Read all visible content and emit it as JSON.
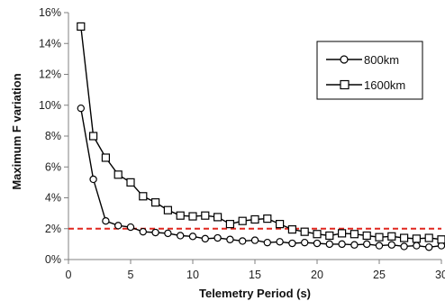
{
  "chart_data": {
    "type": "line",
    "title": "",
    "xlabel": "Telemetry Period (s)",
    "ylabel": "Maximum F variation",
    "xlim": [
      0,
      30
    ],
    "ylim": [
      0,
      16
    ],
    "x_ticks": [
      0,
      5,
      10,
      15,
      20,
      25,
      30
    ],
    "y_ticks": [
      0,
      2,
      4,
      6,
      8,
      10,
      12,
      14,
      16
    ],
    "y_tick_suffix": "%",
    "grid": false,
    "legend_position": "top-right",
    "reference_line": {
      "y": 2,
      "style": "dashed",
      "color": "#e0261e"
    },
    "series": [
      {
        "name": "800km",
        "marker": "circle",
        "color": "#000000",
        "x": [
          1,
          2,
          3,
          4,
          5,
          6,
          7,
          8,
          9,
          10,
          11,
          12,
          13,
          14,
          15,
          16,
          17,
          18,
          19,
          20,
          21,
          22,
          23,
          24,
          25,
          26,
          27,
          28,
          29,
          30
        ],
        "y": [
          9.8,
          5.2,
          2.5,
          2.2,
          2.1,
          1.8,
          1.75,
          1.7,
          1.55,
          1.5,
          1.35,
          1.4,
          1.3,
          1.2,
          1.25,
          1.1,
          1.15,
          1.05,
          1.1,
          1.05,
          1.0,
          1.0,
          0.95,
          1.0,
          0.9,
          0.95,
          0.85,
          0.9,
          0.8,
          0.9
        ]
      },
      {
        "name": "1600km",
        "marker": "square",
        "color": "#000000",
        "x": [
          1,
          2,
          3,
          4,
          5,
          6,
          7,
          8,
          9,
          10,
          11,
          12,
          13,
          14,
          15,
          16,
          17,
          18,
          19,
          20,
          21,
          22,
          23,
          24,
          25,
          26,
          27,
          28,
          29,
          30
        ],
        "y": [
          15.1,
          8.0,
          6.6,
          5.5,
          5.0,
          4.1,
          3.7,
          3.2,
          2.85,
          2.8,
          2.85,
          2.75,
          2.3,
          2.5,
          2.6,
          2.65,
          2.3,
          1.95,
          1.8,
          1.65,
          1.55,
          1.7,
          1.65,
          1.55,
          1.45,
          1.5,
          1.4,
          1.35,
          1.4,
          1.3
        ]
      }
    ]
  }
}
